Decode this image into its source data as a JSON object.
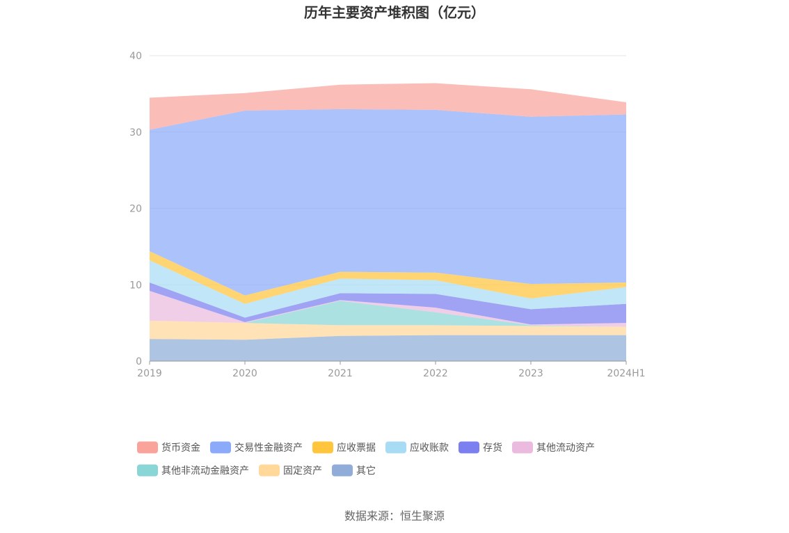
{
  "chart_data": {
    "type": "area",
    "stacked": true,
    "title": "历年主要资产堆积图（亿元）",
    "categories": [
      "2019",
      "2020",
      "2021",
      "2022",
      "2023",
      "2024H1"
    ],
    "ylim": [
      0,
      40
    ],
    "yticks": [
      0,
      10,
      20,
      30,
      40
    ],
    "grid": true,
    "legend_position": "bottom",
    "series": [
      {
        "name": "其它",
        "color": "#8FADD8",
        "values": [
          2.9,
          2.8,
          3.3,
          3.4,
          3.4,
          3.4
        ]
      },
      {
        "name": "固定资产",
        "color": "#FFD89A",
        "values": [
          2.4,
          2.2,
          1.4,
          1.3,
          1.2,
          1.1
        ]
      },
      {
        "name": "其他非流动金融资产",
        "color": "#8AD6D6",
        "values": [
          0.0,
          0.0,
          3.2,
          1.7,
          0.1,
          0.0
        ]
      },
      {
        "name": "其他流动资产",
        "color": "#EBBBDF",
        "values": [
          3.9,
          0.1,
          0.1,
          0.6,
          0.1,
          0.5
        ]
      },
      {
        "name": "存货",
        "color": "#7B7FF0",
        "values": [
          1.1,
          0.6,
          0.9,
          1.8,
          2.0,
          2.5
        ]
      },
      {
        "name": "应收账款",
        "color": "#A8DCF5",
        "values": [
          2.9,
          1.8,
          1.9,
          1.8,
          1.4,
          2.2
        ]
      },
      {
        "name": "应收票据",
        "color": "#FFC53D",
        "values": [
          1.2,
          1.1,
          0.9,
          1.0,
          1.9,
          0.6
        ]
      },
      {
        "name": "交易性金融资产",
        "color": "#8CAAFA",
        "values": [
          15.9,
          24.2,
          21.3,
          21.3,
          21.9,
          22.0
        ]
      },
      {
        "name": "货币资金",
        "color": "#F9A39B",
        "values": [
          4.2,
          2.3,
          3.2,
          3.5,
          3.6,
          1.6
        ]
      }
    ],
    "legend_order": [
      "货币资金",
      "交易性金融资产",
      "应收票据",
      "应收账款",
      "存货",
      "其他流动资产",
      "其他非流动金融资产",
      "固定资产",
      "其它"
    ]
  },
  "source_text": "数据来源：恒生聚源"
}
